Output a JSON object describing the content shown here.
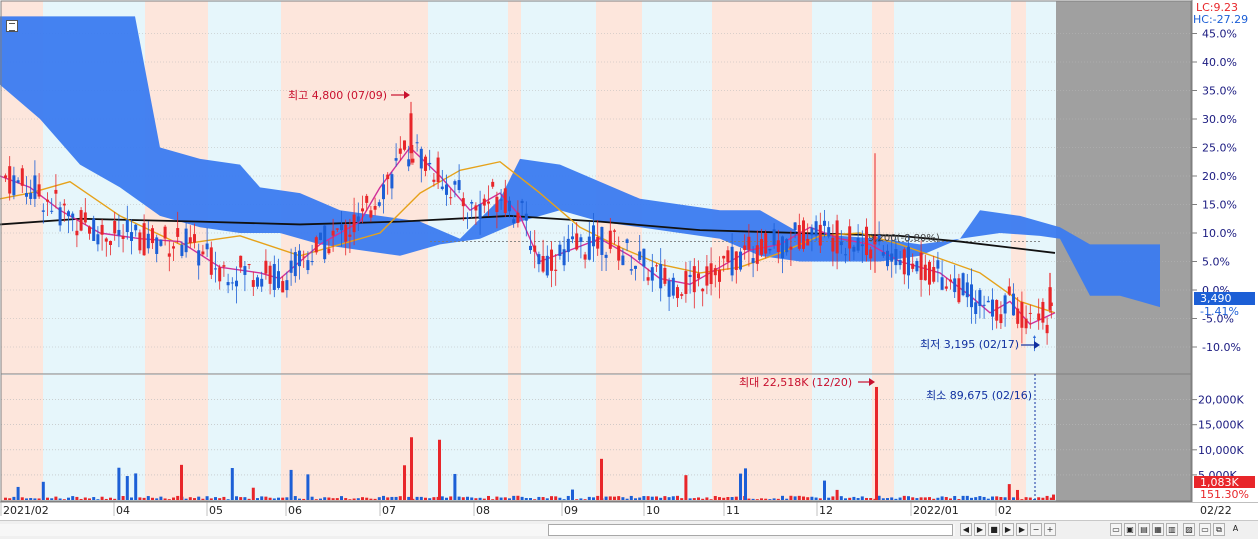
{
  "header": {
    "lc_label": "LC:9.23",
    "hc_label": "HC:-27.29"
  },
  "price_scale": {
    "labels": [
      "45.0%",
      "40.0%",
      "35.0%",
      "30.0%",
      "25.0%",
      "20.0%",
      "15.0%",
      "10.0%",
      "5.0%",
      "0.0%",
      "-5.0%",
      "-10.0%"
    ],
    "current_price": "3,490",
    "current_change": "-1.41%"
  },
  "volume_scale": {
    "labels": [
      "20,000K",
      "15,000K",
      "10,000K",
      "5,000K"
    ],
    "current_volume": "1,083K",
    "current_ratio": "151.30%"
  },
  "annotations": {
    "high": "최고 4,800 (07/09)",
    "low": "최저 3,195 (02/17)",
    "vol_max": "최대 22,518K (12/20)",
    "vol_min": "최소 89,675 (02/16)",
    "ma_label": "9,200(-8.80%)"
  },
  "x_axis": {
    "labels": [
      "2021/02",
      "04",
      "05",
      "06",
      "07",
      "08",
      "09",
      "10",
      "11",
      "12",
      "2022/01",
      "02"
    ],
    "last_date": "02/22"
  },
  "colors": {
    "up": "#e8262a",
    "down": "#1c5fd6",
    "cloud": "#3b7bf0",
    "ma_short": "#d0309a",
    "ma_mid": "#e6a21a",
    "ma_long": "#111111",
    "band_red": "#fde6dc",
    "band_blue": "#e6f6fb",
    "future_gray": "#a0a0a0"
  },
  "chart_data": {
    "type": "candlestick_with_volume",
    "price_unit": "percent change",
    "price_ylim": [
      -13,
      48
    ],
    "volume_ylim": [
      0,
      23000
    ],
    "annotated_points": [
      {
        "label": "high",
        "date": "07/09",
        "price": 4800
      },
      {
        "label": "low",
        "date": "02/17",
        "price": 3195
      },
      {
        "label": "volume_max",
        "date": "12/20",
        "volume_k": 22518
      },
      {
        "label": "volume_min",
        "date": "02/16",
        "volume": 89675
      }
    ],
    "last": {
      "date": "02/22",
      "price": 3490,
      "change_pct": -1.41,
      "volume_k": 1083,
      "volume_ratio_pct": 151.3
    },
    "ma_long_points": [
      [
        0,
        11.5
      ],
      [
        80,
        12.5
      ],
      [
        200,
        12
      ],
      [
        300,
        11.5
      ],
      [
        400,
        12
      ],
      [
        510,
        13
      ],
      [
        600,
        12
      ],
      [
        700,
        10.5
      ],
      [
        800,
        10
      ],
      [
        900,
        9.5
      ],
      [
        960,
        8.5
      ],
      [
        1055,
        6.5
      ]
    ],
    "ma_mid_points": [
      [
        0,
        16
      ],
      [
        30,
        17
      ],
      [
        70,
        19
      ],
      [
        120,
        13
      ],
      [
        180,
        8
      ],
      [
        240,
        9.5
      ],
      [
        300,
        6
      ],
      [
        340,
        8
      ],
      [
        380,
        10
      ],
      [
        420,
        17
      ],
      [
        460,
        21
      ],
      [
        500,
        22.5
      ],
      [
        540,
        17
      ],
      [
        580,
        11
      ],
      [
        620,
        7.5
      ],
      [
        660,
        4.5
      ],
      [
        700,
        3
      ],
      [
        740,
        4
      ],
      [
        780,
        6.5
      ],
      [
        820,
        9.5
      ],
      [
        860,
        10
      ],
      [
        900,
        8
      ],
      [
        940,
        5.5
      ],
      [
        980,
        3
      ],
      [
        1020,
        -2
      ],
      [
        1055,
        -4
      ]
    ],
    "ma_short_points": [
      [
        0,
        20
      ],
      [
        30,
        18
      ],
      [
        60,
        14
      ],
      [
        100,
        10
      ],
      [
        140,
        9
      ],
      [
        180,
        8.5
      ],
      [
        220,
        4
      ],
      [
        260,
        3
      ],
      [
        280,
        2
      ],
      [
        320,
        8
      ],
      [
        360,
        12
      ],
      [
        380,
        18
      ],
      [
        410,
        25
      ],
      [
        440,
        20
      ],
      [
        470,
        14
      ],
      [
        500,
        17
      ],
      [
        520,
        13
      ],
      [
        540,
        5
      ],
      [
        570,
        7
      ],
      [
        600,
        9
      ],
      [
        630,
        6
      ],
      [
        660,
        2
      ],
      [
        690,
        1
      ],
      [
        720,
        4
      ],
      [
        750,
        7
      ],
      [
        780,
        8
      ],
      [
        810,
        11
      ],
      [
        840,
        9
      ],
      [
        870,
        8
      ],
      [
        900,
        5
      ],
      [
        940,
        3
      ],
      [
        970,
        -1
      ],
      [
        990,
        -4
      ],
      [
        1010,
        -2
      ],
      [
        1030,
        -6
      ],
      [
        1055,
        -4
      ]
    ],
    "cloud_upper": [
      [
        0,
        48
      ],
      [
        135,
        48
      ],
      [
        160,
        25
      ],
      [
        200,
        23
      ],
      [
        240,
        22
      ],
      [
        260,
        18
      ],
      [
        300,
        17
      ],
      [
        340,
        14
      ],
      [
        380,
        13
      ],
      [
        420,
        12
      ],
      [
        460,
        9
      ],
      [
        500,
        16
      ],
      [
        520,
        23
      ],
      [
        560,
        22
      ],
      [
        600,
        19
      ],
      [
        640,
        16
      ],
      [
        680,
        15
      ],
      [
        720,
        14
      ],
      [
        760,
        14
      ],
      [
        800,
        10
      ],
      [
        840,
        9.5
      ],
      [
        880,
        9
      ],
      [
        920,
        8
      ],
      [
        960,
        9
      ],
      [
        980,
        14
      ],
      [
        1020,
        13
      ],
      [
        1060,
        11
      ],
      [
        1090,
        8
      ],
      [
        1160,
        8
      ]
    ],
    "cloud_lower": [
      [
        0,
        36
      ],
      [
        40,
        30
      ],
      [
        80,
        22
      ],
      [
        120,
        18
      ],
      [
        160,
        13
      ],
      [
        200,
        11
      ],
      [
        240,
        10
      ],
      [
        280,
        10
      ],
      [
        320,
        8
      ],
      [
        360,
        7
      ],
      [
        400,
        6
      ],
      [
        440,
        8
      ],
      [
        480,
        9
      ],
      [
        520,
        12
      ],
      [
        560,
        14
      ],
      [
        600,
        12
      ],
      [
        640,
        11
      ],
      [
        680,
        10
      ],
      [
        720,
        9
      ],
      [
        760,
        6
      ],
      [
        800,
        5
      ],
      [
        840,
        5
      ],
      [
        880,
        5
      ],
      [
        920,
        6
      ],
      [
        960,
        9
      ],
      [
        1000,
        10
      ],
      [
        1040,
        9.5
      ],
      [
        1060,
        9
      ],
      [
        1090,
        -1
      ],
      [
        1120,
        -1
      ],
      [
        1160,
        -3
      ]
    ]
  }
}
